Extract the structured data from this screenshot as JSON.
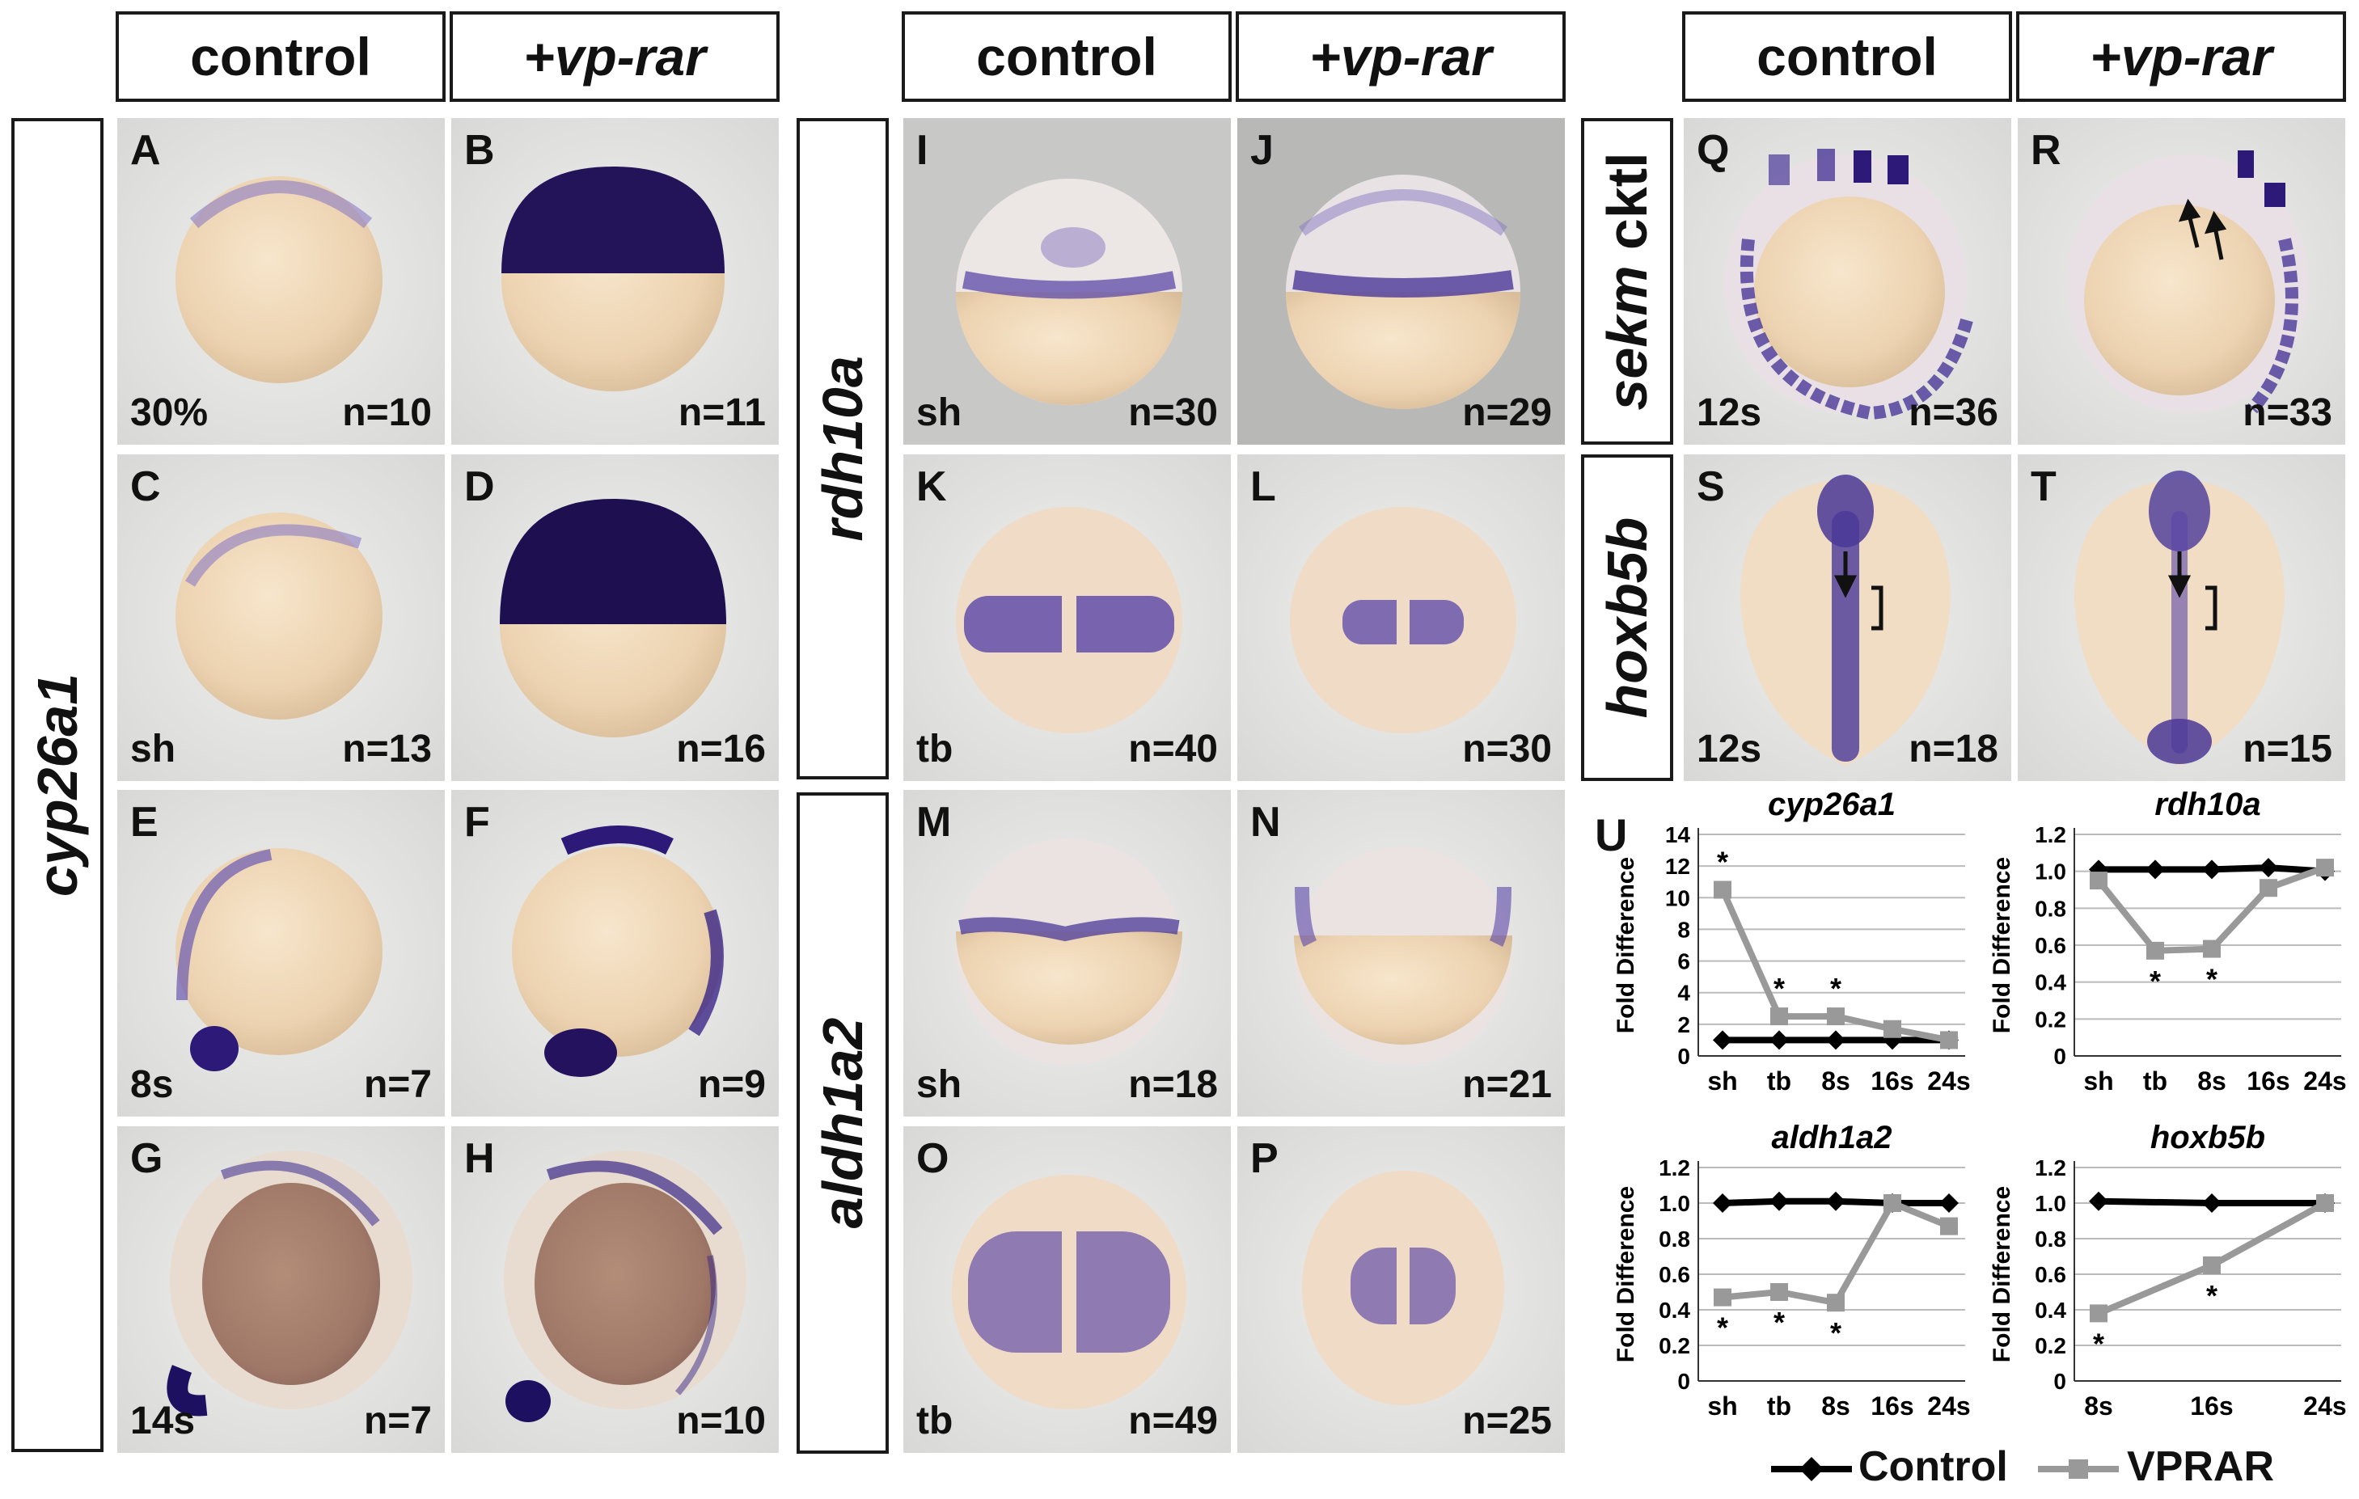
{
  "headers": [
    "control",
    "+vp-rar",
    "control",
    "+vp-rar",
    "control",
    "+vp-rar"
  ],
  "gene_labels": {
    "cyp26a1": "cyp26a1",
    "rdh10a": "rdh10a",
    "aldh1a2": "aldh1a2",
    "sekm": "sekm",
    "cktl": "cktl",
    "hoxb5b": "hoxb5b"
  },
  "panels": [
    {
      "letter": "A",
      "stage": "30%",
      "n": "n=10"
    },
    {
      "letter": "B",
      "stage": "",
      "n": "n=11"
    },
    {
      "letter": "C",
      "stage": "sh",
      "n": "n=13"
    },
    {
      "letter": "D",
      "stage": "",
      "n": "n=16"
    },
    {
      "letter": "E",
      "stage": "8s",
      "n": "n=7"
    },
    {
      "letter": "F",
      "stage": "",
      "n": "n=9"
    },
    {
      "letter": "G",
      "stage": "14s",
      "n": "n=7"
    },
    {
      "letter": "H",
      "stage": "",
      "n": "n=10"
    },
    {
      "letter": "I",
      "stage": "sh",
      "n": "n=30"
    },
    {
      "letter": "J",
      "stage": "",
      "n": "n=29"
    },
    {
      "letter": "K",
      "stage": "tb",
      "n": "n=40"
    },
    {
      "letter": "L",
      "stage": "",
      "n": "n=30"
    },
    {
      "letter": "M",
      "stage": "sh",
      "n": "n=18"
    },
    {
      "letter": "N",
      "stage": "",
      "n": "n=21"
    },
    {
      "letter": "O",
      "stage": "tb",
      "n": "n=49"
    },
    {
      "letter": "P",
      "stage": "",
      "n": "n=25"
    },
    {
      "letter": "Q",
      "stage": "12s",
      "n": "n=36"
    },
    {
      "letter": "R",
      "stage": "",
      "n": "n=33"
    },
    {
      "letter": "S",
      "stage": "12s",
      "n": "n=18"
    },
    {
      "letter": "T",
      "stage": "",
      "n": "n=15"
    }
  ],
  "u_label": "U",
  "colors": {
    "control": "#000000",
    "vprar": "#999999",
    "stain": "#2a1670",
    "yolk": "#f1dcc0"
  },
  "legend": {
    "control": "Control",
    "vprar": "VPRAR"
  },
  "chart_data": [
    {
      "type": "line",
      "title": "cyp26a1",
      "ylabel": "Fold Difference",
      "x": [
        "sh",
        "tb",
        "8s",
        "16s",
        "24s"
      ],
      "ylim": [
        0,
        14
      ],
      "yticks": [
        0,
        2,
        4,
        6,
        8,
        10,
        12,
        14
      ],
      "series": [
        {
          "name": "Control",
          "values": [
            1,
            1,
            1,
            1,
            1
          ]
        },
        {
          "name": "VPRAR",
          "values": [
            10.5,
            2.5,
            2.5,
            1.7,
            1.0
          ]
        }
      ],
      "significance": [
        "*",
        "*",
        "*",
        "",
        ""
      ],
      "sig_series": "VPRAR",
      "sig_pos": "above"
    },
    {
      "type": "line",
      "title": "rdh10a",
      "ylabel": "Fold Difference",
      "x": [
        "sh",
        "tb",
        "8s",
        "16s",
        "24s"
      ],
      "ylim": [
        0,
        1.2
      ],
      "yticks": [
        "0",
        "0.2",
        "0.4",
        "0.6",
        "0.8",
        "1.0",
        "1.2"
      ],
      "series": [
        {
          "name": "Control",
          "values": [
            1.01,
            1.01,
            1.01,
            1.02,
            1.0
          ]
        },
        {
          "name": "VPRAR",
          "values": [
            0.95,
            0.57,
            0.58,
            0.91,
            1.02
          ]
        }
      ],
      "significance": [
        "",
        "*",
        "*",
        "",
        ""
      ],
      "sig_series": "VPRAR",
      "sig_pos": "below"
    },
    {
      "type": "line",
      "title": "aldh1a2",
      "ylabel": "Fold Difference",
      "x": [
        "sh",
        "tb",
        "8s",
        "16s",
        "24s"
      ],
      "ylim": [
        0,
        1.2
      ],
      "yticks": [
        "0",
        "0.2",
        "0.4",
        "0.6",
        "0.8",
        "1.0",
        "1.2"
      ],
      "series": [
        {
          "name": "Control",
          "values": [
            1.0,
            1.01,
            1.01,
            1.0,
            1.0
          ]
        },
        {
          "name": "VPRAR",
          "values": [
            0.47,
            0.5,
            0.44,
            1.0,
            0.87
          ]
        }
      ],
      "significance": [
        "*",
        "*",
        "*",
        "",
        ""
      ],
      "sig_series": "VPRAR",
      "sig_pos": "below"
    },
    {
      "type": "line",
      "title": "hoxb5b",
      "ylabel": "Fold Difference",
      "x": [
        "8s",
        "16s",
        "24s"
      ],
      "ylim": [
        0,
        1.2
      ],
      "yticks": [
        "0",
        "0.2",
        "0.4",
        "0.6",
        "0.8",
        "1.0",
        "1.2"
      ],
      "series": [
        {
          "name": "Control",
          "values": [
            1.01,
            1.0,
            1.0
          ]
        },
        {
          "name": "VPRAR",
          "values": [
            0.38,
            0.65,
            1.0
          ]
        }
      ],
      "significance": [
        "*",
        "*",
        ""
      ],
      "sig_series": "VPRAR",
      "sig_pos": "below"
    }
  ]
}
